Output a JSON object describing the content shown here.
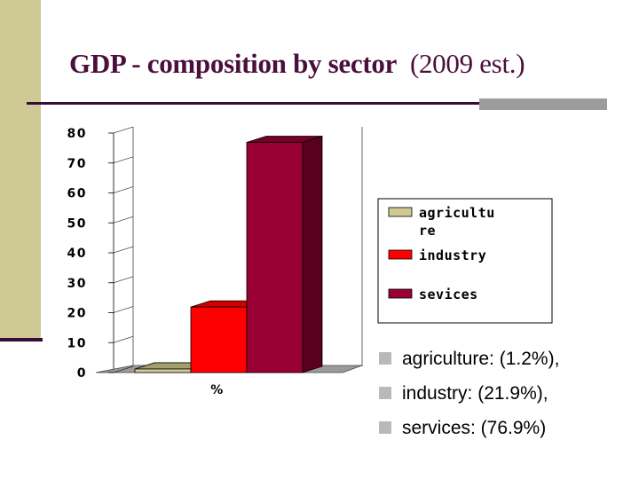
{
  "slide": {
    "title_main": "GDP - composition by sector",
    "title_sub": "(2009 est.)"
  },
  "chart_data": {
    "type": "bar",
    "title": "",
    "xlabel": "",
    "ylabel": "",
    "categories": [
      "%"
    ],
    "series": [
      {
        "name": "agriculture",
        "values": [
          1.2
        ],
        "color": "#cfc996",
        "side_color": "#8f8a5e",
        "top_color": "#a39e6c"
      },
      {
        "name": "industry",
        "values": [
          21.9
        ],
        "color": "#ff0000",
        "side_color": "#a80000",
        "top_color": "#d00000"
      },
      {
        "name": "sevices",
        "values": [
          76.9
        ],
        "color": "#990033",
        "side_color": "#5a001e",
        "top_color": "#73002a"
      }
    ],
    "ylim": [
      0,
      80
    ],
    "yticks": [
      0,
      10,
      20,
      30,
      40,
      50,
      60,
      70,
      80
    ],
    "legend": {
      "position": "right",
      "labels": [
        [
          "agricultu",
          "re"
        ],
        [
          "industry"
        ],
        [
          "sevices"
        ]
      ]
    }
  },
  "bullets": [
    "agriculture: (1.2%),",
    "industry: (21.9%),",
    "services: (76.9%)"
  ],
  "colors": {
    "title": "#4a0f3c",
    "accent_bar": "#cfc996",
    "rule": "#3a0b3a",
    "rule_accent": "#9c9c9c",
    "bullet": "#b9b9b9"
  }
}
